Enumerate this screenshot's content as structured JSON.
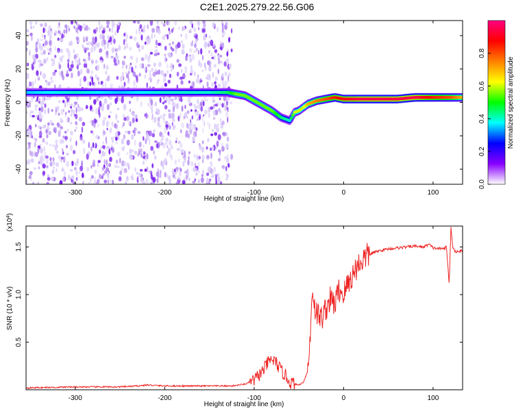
{
  "title": "C2E1.2025.279.22.56.G06",
  "chart_data": [
    {
      "type": "heatmap",
      "xlabel": "Height of straight line (km)",
      "ylabel": "Frequency (Hz)",
      "xlim": [
        -355,
        133
      ],
      "ylim": [
        -49,
        49
      ],
      "x_ticks": [
        -300,
        -200,
        -100,
        0,
        100
      ],
      "x_tick_labels": [
        "-300",
        "-200",
        "-100",
        "0",
        "100"
      ],
      "y_ticks": [
        -40,
        -20,
        0,
        20,
        40
      ],
      "y_tick_labels": [
        "-40",
        "-20",
        "0",
        "20",
        "40"
      ],
      "colorbar": {
        "label": "Normalized spectral amplitude",
        "range": [
          0,
          1
        ],
        "ticks": [
          0.0,
          0.2,
          0.4,
          0.6,
          0.8
        ],
        "tick_labels": [
          "0.0",
          "0.2",
          "0.4",
          "0.6",
          "0.8"
        ],
        "colors": [
          "#ffffff",
          "#8800ff",
          "#0000ff",
          "#00ffff",
          "#00ff00",
          "#ffff00",
          "#ff8000",
          "#ff0000",
          "#ff0080"
        ]
      },
      "ridge": {
        "x": [
          -355,
          -300,
          -250,
          -200,
          -150,
          -130,
          -120,
          -110,
          -100,
          -90,
          -80,
          -70,
          -60,
          -55,
          -50,
          -45,
          -40,
          -30,
          -20,
          -10,
          0,
          20,
          40,
          60,
          80,
          100,
          120,
          133
        ],
        "y": [
          6,
          6,
          6,
          6,
          6,
          6,
          5,
          4,
          1,
          -2,
          -5,
          -9,
          -11,
          -6,
          -5,
          -3,
          -1,
          1,
          2,
          3,
          2,
          2,
          2,
          2,
          3,
          3,
          3,
          3
        ],
        "amplitude": [
          0.35,
          0.4,
          0.35,
          0.4,
          0.4,
          0.45,
          0.55,
          0.55,
          0.55,
          0.55,
          0.55,
          0.45,
          0.4,
          0.6,
          0.6,
          0.6,
          0.7,
          0.75,
          0.8,
          0.85,
          0.9,
          0.95,
          0.95,
          0.95,
          0.95,
          0.85,
          0.8,
          0.7
        ]
      },
      "noise_region": {
        "x_range": [
          -355,
          -125
        ],
        "frequency_range": [
          -49,
          49
        ],
        "amplitude": 0.1
      }
    },
    {
      "type": "line",
      "xlabel": "Height of straight line (km)",
      "ylabel": "SNR (10 * v/v)",
      "y_multiplier": "(x10",
      "y_multiplier_exp": "4",
      "y_multiplier_close": ")",
      "xlim": [
        -355,
        133
      ],
      "ylim": [
        0,
        1.72
      ],
      "x_ticks": [
        -300,
        -200,
        -100,
        0,
        100
      ],
      "x_tick_labels": [
        "-300",
        "-200",
        "-100",
        "0",
        "100"
      ],
      "y_ticks": [
        0.5,
        1.0,
        1.5
      ],
      "y_tick_labels": [
        "0.5",
        "1.0",
        "1.5"
      ],
      "color": "#ee2222",
      "series": [
        {
          "x": [
            -355,
            -300,
            -250,
            -230,
            -220,
            -200,
            -150,
            -125,
            -110,
            -100,
            -90,
            -85,
            -80,
            -75,
            -70,
            -65,
            -60,
            -55,
            -50,
            -45,
            -40,
            -37,
            -35,
            -33,
            -30,
            -25,
            -20,
            -15,
            -10,
            -5,
            0,
            5,
            10,
            15,
            20,
            25,
            30,
            40,
            50,
            60,
            70,
            80,
            90,
            95,
            100,
            110,
            115,
            118,
            120,
            122,
            125,
            133
          ],
          "y": [
            0.02,
            0.03,
            0.03,
            0.04,
            0.05,
            0.04,
            0.04,
            0.04,
            0.06,
            0.1,
            0.2,
            0.28,
            0.32,
            0.28,
            0.2,
            0.15,
            0.08,
            0.06,
            0.05,
            0.08,
            0.2,
            0.6,
            1.1,
            0.9,
            0.8,
            0.75,
            0.85,
            0.95,
            0.9,
            1.05,
            1.0,
            1.12,
            1.2,
            1.3,
            1.35,
            1.4,
            1.43,
            1.46,
            1.48,
            1.49,
            1.5,
            1.51,
            1.5,
            1.53,
            1.49,
            1.48,
            1.5,
            1.1,
            1.72,
            1.5,
            1.45,
            1.46
          ]
        }
      ]
    }
  ]
}
